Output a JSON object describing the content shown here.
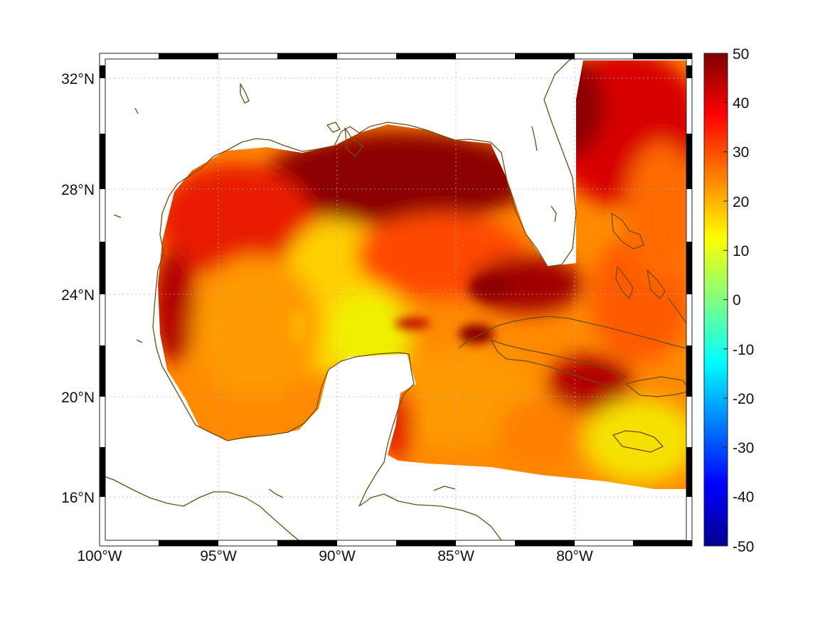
{
  "map": {
    "lon_ticks": [
      "100°W",
      "95°W",
      "90°W",
      "85°W",
      "80°W"
    ],
    "lat_ticks": [
      "32°N",
      "28°N",
      "24°N",
      "20°N",
      "16°N"
    ],
    "lon_range": [
      -100,
      -75
    ],
    "lat_range": [
      14.3,
      32.9
    ],
    "grid": true,
    "frame_style": "alternating black/white border"
  },
  "colorbar": {
    "ticks": [
      "50",
      "40",
      "30",
      "20",
      "10",
      "0",
      "-10",
      "-20",
      "-30",
      "-40",
      "-50"
    ],
    "range": [
      -50,
      50
    ],
    "colormap": "jet",
    "placement": "right"
  },
  "chart_data": {
    "type": "heatmap",
    "title": "",
    "xlabel": "",
    "ylabel": "",
    "x_ticks": [
      "100°W",
      "95°W",
      "90°W",
      "85°W",
      "80°W"
    ],
    "y_ticks": [
      "32°N",
      "28°N",
      "24°N",
      "20°N",
      "16°N"
    ],
    "colorbar_range": [
      -50,
      50
    ],
    "value_summary": "ocean field values mostly between about 10 and 50; maxima (~50) over the northern Gulf shelf, Florida Straits and the Atlantic east of Florida; ~15-25 over the central Gulf and near Jamaica"
  }
}
